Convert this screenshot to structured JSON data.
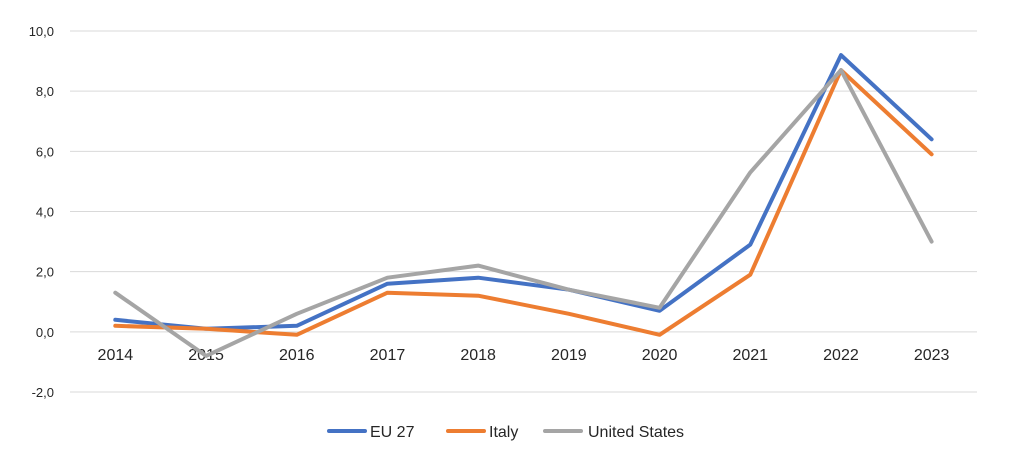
{
  "chart_data": {
    "type": "line",
    "title": "",
    "xlabel": "",
    "ylabel": "",
    "categories": [
      "2014",
      "2015",
      "2016",
      "2017",
      "2018",
      "2019",
      "2020",
      "2021",
      "2022",
      "2023"
    ],
    "y_ticks": [
      "-2,0",
      "0,0",
      "2,0",
      "4,0",
      "6,0",
      "8,0",
      "10,0"
    ],
    "ylim": [
      -2,
      10
    ],
    "grid": true,
    "legend_position": "bottom",
    "series": [
      {
        "name": "EU 27",
        "color": "#4472C4",
        "values": [
          0.4,
          0.1,
          0.2,
          1.6,
          1.8,
          1.4,
          0.7,
          2.9,
          9.2,
          6.4
        ]
      },
      {
        "name": "Italy",
        "color": "#ED7D31",
        "values": [
          0.2,
          0.1,
          -0.1,
          1.3,
          1.2,
          0.6,
          -0.1,
          1.9,
          8.7,
          5.9
        ]
      },
      {
        "name": "United States",
        "color": "#A5A5A5",
        "values": [
          1.3,
          -0.8,
          0.6,
          1.8,
          2.2,
          1.4,
          0.8,
          5.3,
          8.7,
          3.0
        ]
      }
    ]
  }
}
